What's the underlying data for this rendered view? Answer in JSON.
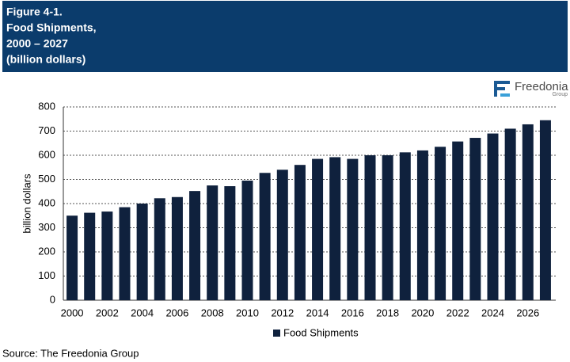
{
  "chart_data": {
    "type": "bar",
    "title": [
      "Figure 4-1.",
      "Food Shipments,",
      "2000 – 2027",
      "(billion dollars)"
    ],
    "logo": {
      "name": "Freedonia",
      "sub": "Group"
    },
    "source": "Source: The Freedonia Group",
    "ylabel": "billion dollars",
    "categories": [
      "2000",
      null,
      "2002",
      null,
      "2004",
      null,
      "2006",
      null,
      "2008",
      null,
      "2010",
      null,
      "2012",
      null,
      "2014",
      null,
      "2016",
      null,
      "2018",
      null,
      "2020",
      null,
      "2022",
      null,
      "2024",
      null,
      "2026",
      null
    ],
    "series": [
      {
        "name": "Food Shipments",
        "color": "#0f213d",
        "values": [
          350,
          362,
          367,
          385,
          400,
          422,
          427,
          452,
          475,
          472,
          495,
          527,
          540,
          560,
          585,
          592,
          585,
          600,
          600,
          612,
          620,
          635,
          657,
          672,
          690,
          710,
          728,
          745
        ]
      }
    ],
    "ylim": [
      0,
      800
    ],
    "yticks": [
      0,
      100,
      200,
      300,
      400,
      500,
      600,
      700,
      800
    ],
    "grid": true
  }
}
